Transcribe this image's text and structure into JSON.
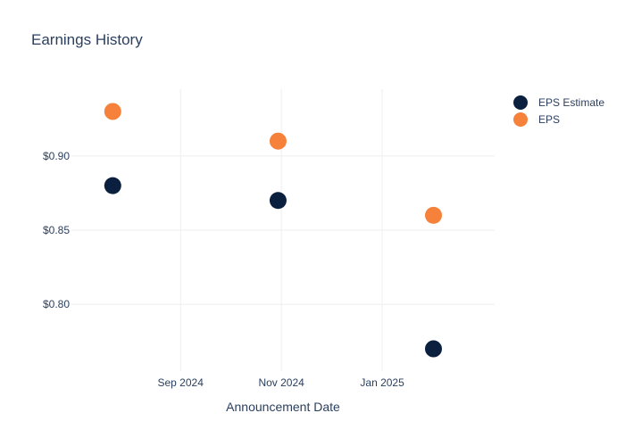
{
  "chart_data": {
    "type": "scatter",
    "title": "Earnings History",
    "xlabel": "Announcement Date",
    "ylabel": "",
    "x_axis": {
      "type": "date",
      "range": [
        "2024-06-27",
        "2025-03-10"
      ],
      "ticks": [
        {
          "value": "2024-09-01",
          "label": "Sep 2024"
        },
        {
          "value": "2024-11-01",
          "label": "Nov 2024"
        },
        {
          "value": "2025-01-01",
          "label": "Jan 2025"
        }
      ]
    },
    "y_axis": {
      "range": [
        0.755,
        0.945
      ],
      "ticks": [
        {
          "value": 0.8,
          "label": "$0.80"
        },
        {
          "value": 0.85,
          "label": "$0.85"
        },
        {
          "value": 0.9,
          "label": "$0.90"
        }
      ]
    },
    "grid": true,
    "legend_position": "top-right",
    "series": [
      {
        "name": "EPS Estimate",
        "color": "#0b1f3f",
        "points": [
          {
            "x": "2024-07-22",
            "y": 0.88
          },
          {
            "x": "2024-10-30",
            "y": 0.87
          },
          {
            "x": "2025-02-01",
            "y": 0.77
          }
        ]
      },
      {
        "name": "EPS",
        "color": "#f5813a",
        "points": [
          {
            "x": "2024-07-22",
            "y": 0.93
          },
          {
            "x": "2024-10-30",
            "y": 0.91
          },
          {
            "x": "2025-02-01",
            "y": 0.86
          }
        ]
      }
    ]
  }
}
